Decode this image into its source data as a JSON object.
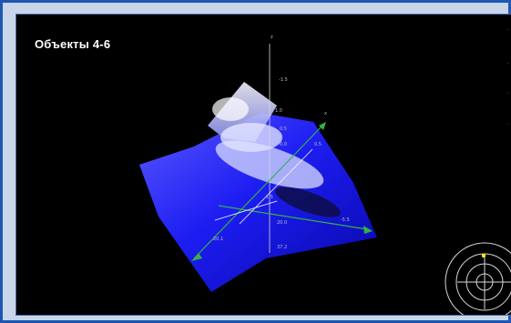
{
  "view": {
    "title": "Объекты 4-6",
    "axis": {
      "z_label": "z",
      "x_label": "x"
    },
    "tick_labels": [
      "-1.5",
      "1.0",
      "0.5",
      "0.0",
      "0.5",
      "1.0",
      "1.5",
      "20.0",
      "37.2",
      "20.1",
      "-5.5"
    ],
    "colors": {
      "seabed_blue": "#1818ff",
      "point_cloud": "#e8ecff",
      "axis_green": "#35b24a",
      "frame_border": "#1f56b4"
    },
    "icons": [
      "compass-radar-icon"
    ]
  }
}
